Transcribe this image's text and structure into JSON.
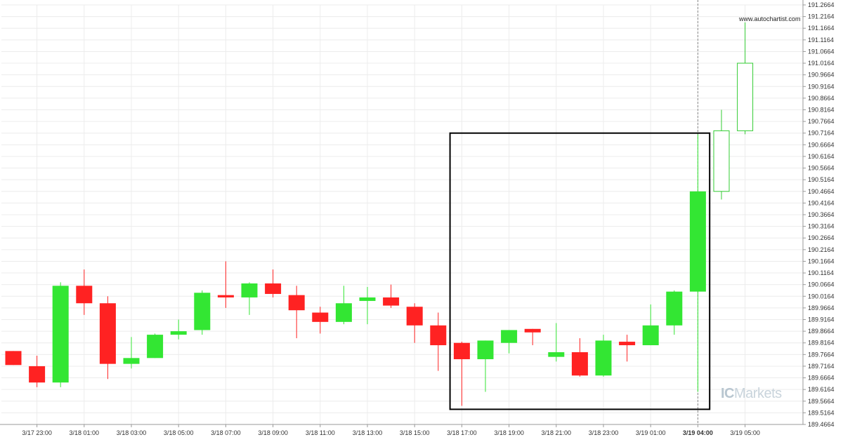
{
  "watermark": {
    "url": "www.autochartist.com",
    "brand_prefix": "IC",
    "brand_suffix": "Markets"
  },
  "chart_data": {
    "type": "candlestick",
    "title": "",
    "xlabel": "",
    "ylabel": "",
    "ylim": [
      189.4664,
      191.2664
    ],
    "y_ticks": [
      "191.2664",
      "191.2164",
      "191.1664",
      "191.1164",
      "191.0664",
      "191.0164",
      "190.9664",
      "190.9164",
      "190.8664",
      "190.8164",
      "190.7664",
      "190.7164",
      "190.6664",
      "190.6164",
      "190.5664",
      "190.5164",
      "190.4664",
      "190.4164",
      "190.3664",
      "190.3164",
      "190.2664",
      "190.2164",
      "190.1664",
      "190.1164",
      "190.0664",
      "190.0164",
      "189.9664",
      "189.9164",
      "189.8664",
      "189.8164",
      "189.7664",
      "189.7164",
      "189.6664",
      "189.6164",
      "189.5664",
      "189.5164",
      "189.4664"
    ],
    "x_labels": [
      "3/17 23:00",
      "3/18 01:00",
      "3/18 03:00",
      "3/18 05:00",
      "3/18 07:00",
      "3/18 09:00",
      "3/18 11:00",
      "3/18 13:00",
      "3/18 15:00",
      "3/18 17:00",
      "3/18 19:00",
      "3/18 21:00",
      "3/18 23:00",
      "3/19 01:00",
      "3/19 04:00",
      "3/19 05:00"
    ],
    "x_label_candle_index": [
      1,
      3,
      5,
      7,
      9,
      11,
      13,
      15,
      17,
      19,
      21,
      23,
      25,
      27,
      29,
      31
    ],
    "highlighted_x_label": "3/19 04:00",
    "grid": true,
    "candles": [
      {
        "o": 189.7814,
        "h": 189.7814,
        "l": 189.7214,
        "c": 189.7214
      },
      {
        "o": 189.7164,
        "h": 189.7614,
        "l": 189.6264,
        "c": 189.6464
      },
      {
        "o": 189.6464,
        "h": 190.0764,
        "l": 189.6264,
        "c": 190.0614
      },
      {
        "o": 190.0614,
        "h": 190.1314,
        "l": 189.9364,
        "c": 189.9864
      },
      {
        "o": 189.9864,
        "h": 190.0164,
        "l": 189.6614,
        "c": 189.7264
      },
      {
        "o": 189.7264,
        "h": 189.8414,
        "l": 189.7064,
        "c": 189.7514
      },
      {
        "o": 189.7514,
        "h": 189.8564,
        "l": 189.7514,
        "c": 189.8514
      },
      {
        "o": 189.8514,
        "h": 189.9164,
        "l": 189.8314,
        "c": 189.8664
      },
      {
        "o": 189.8714,
        "h": 190.0414,
        "l": 189.8514,
        "c": 190.0314
      },
      {
        "o": 190.0214,
        "h": 190.1664,
        "l": 189.9664,
        "c": 190.0114
      },
      {
        "o": 190.0114,
        "h": 190.0764,
        "l": 189.9364,
        "c": 190.0714
      },
      {
        "o": 190.0714,
        "h": 190.1314,
        "l": 190.0114,
        "c": 190.0264
      },
      {
        "o": 190.0214,
        "h": 190.0614,
        "l": 189.8364,
        "c": 189.9564
      },
      {
        "o": 189.9464,
        "h": 189.9714,
        "l": 189.8564,
        "c": 189.9064
      },
      {
        "o": 189.9064,
        "h": 190.0614,
        "l": 189.8964,
        "c": 189.9864
      },
      {
        "o": 189.9964,
        "h": 190.0564,
        "l": 189.8964,
        "c": 190.0114
      },
      {
        "o": 190.0114,
        "h": 190.0664,
        "l": 189.9664,
        "c": 189.9764
      },
      {
        "o": 189.9714,
        "h": 189.9864,
        "l": 189.8164,
        "c": 189.8914
      },
      {
        "o": 189.8914,
        "h": 189.9464,
        "l": 189.6964,
        "c": 189.8064
      },
      {
        "o": 189.8164,
        "h": 189.8214,
        "l": 189.5464,
        "c": 189.7464
      },
      {
        "o": 189.7464,
        "h": 189.8264,
        "l": 189.6064,
        "c": 189.8264
      },
      {
        "o": 189.8164,
        "h": 189.8714,
        "l": 189.7714,
        "c": 189.8714
      },
      {
        "o": 189.8764,
        "h": 189.8764,
        "l": 189.8064,
        "c": 189.8614
      },
      {
        "o": 189.7564,
        "h": 189.9014,
        "l": 189.7364,
        "c": 189.7764
      },
      {
        "o": 189.7764,
        "h": 189.8364,
        "l": 189.6714,
        "c": 189.6764
      },
      {
        "o": 189.6764,
        "h": 189.8514,
        "l": 189.6714,
        "c": 189.8264
      },
      {
        "o": 189.8214,
        "h": 189.8514,
        "l": 189.7364,
        "c": 189.8064
      },
      {
        "o": 189.8064,
        "h": 189.9814,
        "l": 189.8064,
        "c": 189.8914
      },
      {
        "o": 189.8914,
        "h": 190.0414,
        "l": 189.8514,
        "c": 190.0364
      },
      {
        "o": 190.0364,
        "h": 190.7114,
        "l": 189.6064,
        "c": 190.4664
      },
      {
        "o": 190.4664,
        "h": 190.8164,
        "l": 190.4314,
        "c": 190.7264
      },
      {
        "o": 190.7264,
        "h": 191.1914,
        "l": 190.7114,
        "c": 191.0164
      }
    ],
    "box": {
      "x_from_index": 18.5,
      "x_to_index": 29.5,
      "y_top": 190.7164,
      "y_bottom": 189.5314
    },
    "vline_index": 29,
    "colors": {
      "bull": "#33e633",
      "bull_hollow_stroke": "#33cc33",
      "bear": "#ff2222",
      "grid": "#ececec",
      "axis_text": "#333333",
      "box": "#000000",
      "vline": "#888888"
    },
    "hollow_from_index": 30
  }
}
